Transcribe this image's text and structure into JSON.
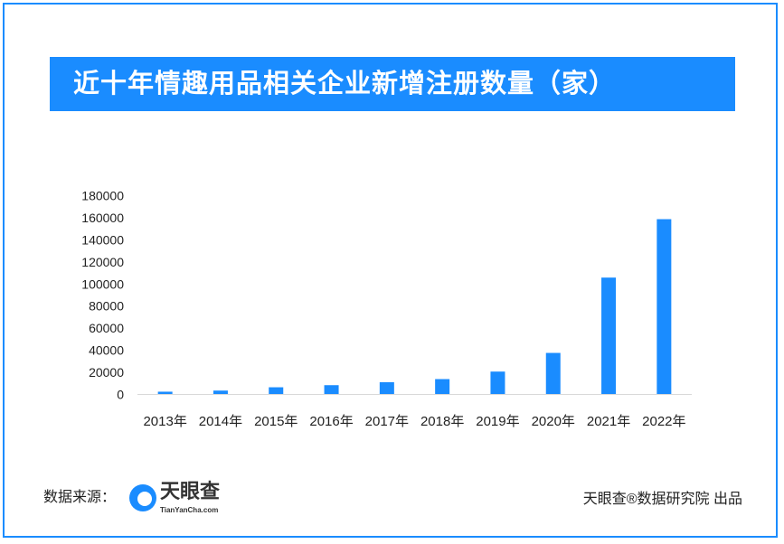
{
  "title": "近十年情趣用品相关企业新增注册数量（家）",
  "footer": {
    "source_label": "数据来源：",
    "logo_name": "天眼查",
    "logo_url": "TianYanCha.com",
    "credit": "天眼查®数据研究院 出品"
  },
  "colors": {
    "bar": "#1a8cff",
    "accent": "#1a8cff"
  },
  "chart_data": {
    "type": "bar",
    "title": "近十年情趣用品相关企业新增注册数量（家）",
    "categories": [
      "2013年",
      "2014年",
      "2015年",
      "2016年",
      "2017年",
      "2018年",
      "2019年",
      "2020年",
      "2021年",
      "2022年"
    ],
    "values": [
      2500,
      3500,
      6500,
      8400,
      11100,
      13900,
      20700,
      37600,
      105800,
      158700
    ],
    "ylim": [
      0,
      180000
    ],
    "yticks": [
      "0",
      "20000",
      "40000",
      "60000",
      "80000",
      "100000",
      "120000",
      "140000",
      "160000",
      "180000"
    ],
    "xlabel": "",
    "ylabel": "",
    "grid": false
  }
}
